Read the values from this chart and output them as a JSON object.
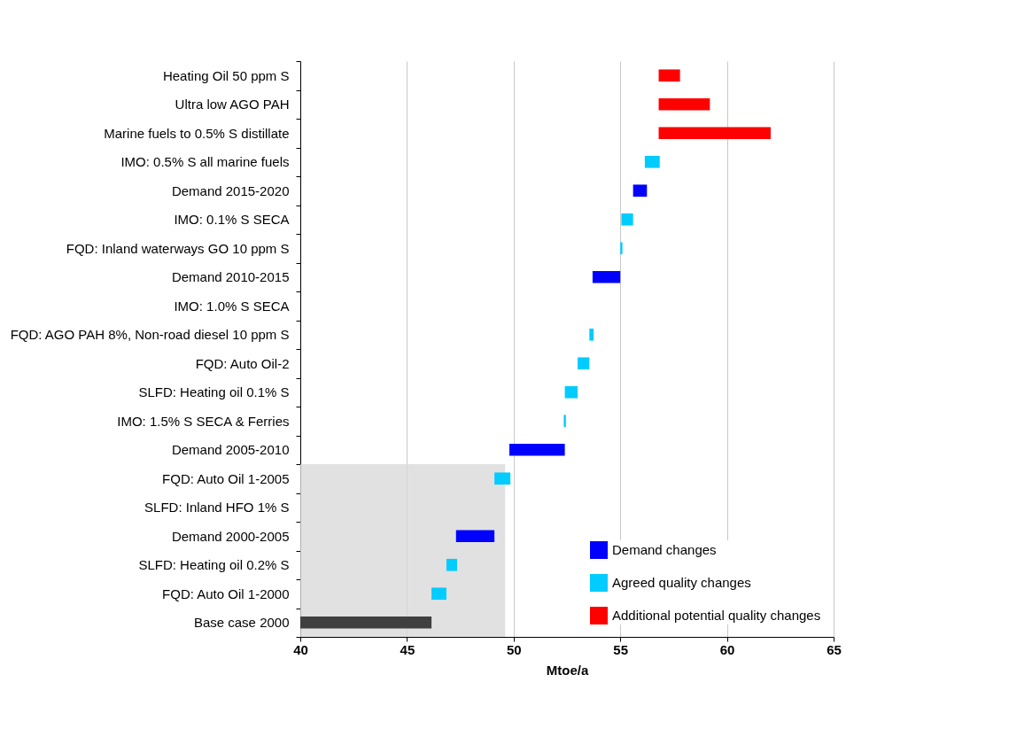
{
  "chart_data": {
    "type": "bar",
    "orientation": "horizontal",
    "xlabel": "Mtoe/a",
    "categories": [
      "Heating Oil 50 ppm S",
      "Ultra low AGO PAH",
      "Marine fuels to 0.5% S distillate",
      "IMO: 0.5% S all marine fuels",
      "Demand 2015-2020",
      "IMO: 0.1% S SECA",
      "FQD: Inland waterways GO 10 ppm S",
      "Demand 2010-2015",
      "IMO: 1.0% S SECA",
      "FQD: AGO PAH 8%, Non-road diesel 10 ppm S",
      "FQD: Auto Oil-2",
      "SLFD: Heating oil 0.1% S",
      "IMO: 1.5% S SECA & Ferries",
      "Demand 2005-2010",
      "FQD: Auto Oil 1-2005",
      "SLFD: Inland HFO 1% S",
      "Demand 2000-2005",
      "SLFD: Heating oil 0.2% S",
      "FQD: Auto Oil 1-2000",
      "Base case 2000"
    ],
    "series": [
      {
        "name": "Demand changes",
        "color": "#0000ff",
        "values": [
          null,
          null,
          null,
          null,
          0.65,
          null,
          null,
          1.3,
          null,
          null,
          null,
          null,
          null,
          2.6,
          null,
          null,
          1.8,
          null,
          null,
          null
        ],
        "base": [
          null,
          null,
          null,
          null,
          55.6,
          null,
          null,
          53.7,
          null,
          null,
          null,
          null,
          null,
          49.8,
          null,
          null,
          47.3,
          null,
          null,
          null
        ]
      },
      {
        "name": "Agreed quality changes",
        "color": "#00ccff",
        "values": [
          null,
          null,
          null,
          0.7,
          null,
          0.55,
          0.1,
          null,
          null,
          0.2,
          0.55,
          0.6,
          0.1,
          null,
          0.75,
          null,
          null,
          0.5,
          0.7,
          null
        ],
        "base": [
          null,
          null,
          null,
          56.15,
          null,
          55.05,
          55.0,
          null,
          null,
          53.55,
          53.0,
          52.4,
          52.35,
          null,
          49.1,
          null,
          null,
          46.85,
          46.15,
          null
        ]
      },
      {
        "name": "Additional potential quality changes",
        "color": "#ff0000",
        "values": [
          1.0,
          2.4,
          5.25,
          null,
          null,
          null,
          null,
          null,
          null,
          null,
          null,
          null,
          null,
          null,
          null,
          null,
          null,
          null,
          null,
          null
        ],
        "base": [
          56.8,
          56.8,
          56.8,
          null,
          null,
          null,
          null,
          null,
          null,
          null,
          null,
          null,
          null,
          null,
          null,
          null,
          null,
          null,
          null,
          null
        ]
      },
      {
        "color": "#404040",
        "values": [
          null,
          null,
          null,
          null,
          null,
          null,
          null,
          null,
          null,
          null,
          null,
          null,
          null,
          null,
          null,
          null,
          null,
          null,
          null,
          6.15
        ],
        "base": [
          null,
          null,
          null,
          null,
          null,
          null,
          null,
          null,
          null,
          null,
          null,
          null,
          null,
          null,
          null,
          null,
          null,
          null,
          null,
          40
        ]
      }
    ],
    "xlim": [
      40,
      65
    ],
    "xticks": [
      40,
      45,
      50,
      55,
      60,
      65
    ],
    "grid": "x",
    "legend": "bottom right",
    "bands": [
      {
        "axis": "x",
        "from": 40,
        "to": 49.6,
        "color": "#d9d9d9"
      }
    ]
  }
}
